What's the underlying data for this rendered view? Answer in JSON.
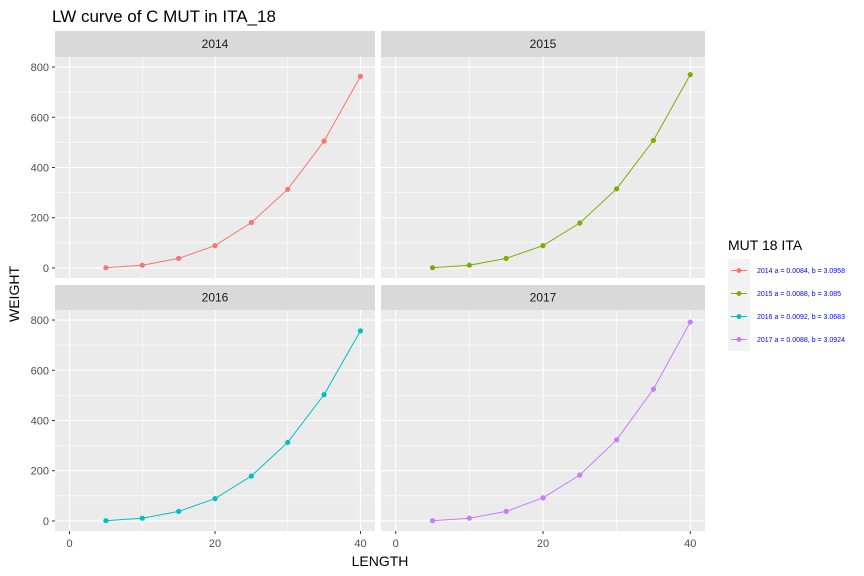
{
  "chart_data": {
    "type": "line",
    "title": "LW curve of C MUT in ITA_18",
    "xlabel": "LENGTH",
    "ylabel": "WEIGHT",
    "xlim": [
      -2,
      42
    ],
    "ylim": [
      -40,
      840
    ],
    "x_ticks": [
      0,
      20,
      40
    ],
    "y_ticks": [
      0,
      200,
      400,
      600,
      800
    ],
    "grid": true,
    "legend_position": "right",
    "legend_title": "MUT 18 ITA",
    "legend_text_color": "#0000ff",
    "panels": [
      {
        "strip": "2014",
        "legend": "2014 a = 0.0084, b = 3.0958",
        "color": "#f8766d",
        "x": [
          5,
          10,
          15,
          20,
          25,
          30,
          35,
          40
        ],
        "y": [
          1,
          11,
          38,
          89,
          181,
          313,
          505,
          763
        ]
      },
      {
        "strip": "2015",
        "legend": "2015 a = 0.0088, b = 3.085",
        "color": "#7cae00",
        "x": [
          5,
          10,
          15,
          20,
          25,
          30,
          35,
          40
        ],
        "y": [
          1,
          11,
          38,
          89,
          179,
          315,
          508,
          770
        ]
      },
      {
        "strip": "2016",
        "legend": "2016 a = 0.0092, b = 3.0683",
        "color": "#00bfc4",
        "x": [
          5,
          10,
          15,
          20,
          25,
          30,
          35,
          40
        ],
        "y": [
          1,
          11,
          38,
          89,
          179,
          313,
          503,
          757
        ]
      },
      {
        "strip": "2017",
        "legend": "2017 a = 0.0088, b = 3.0924",
        "color": "#c77cff",
        "x": [
          5,
          10,
          15,
          20,
          25,
          30,
          35,
          40
        ],
        "y": [
          1,
          11,
          38,
          92,
          183,
          323,
          525,
          792
        ]
      }
    ]
  }
}
